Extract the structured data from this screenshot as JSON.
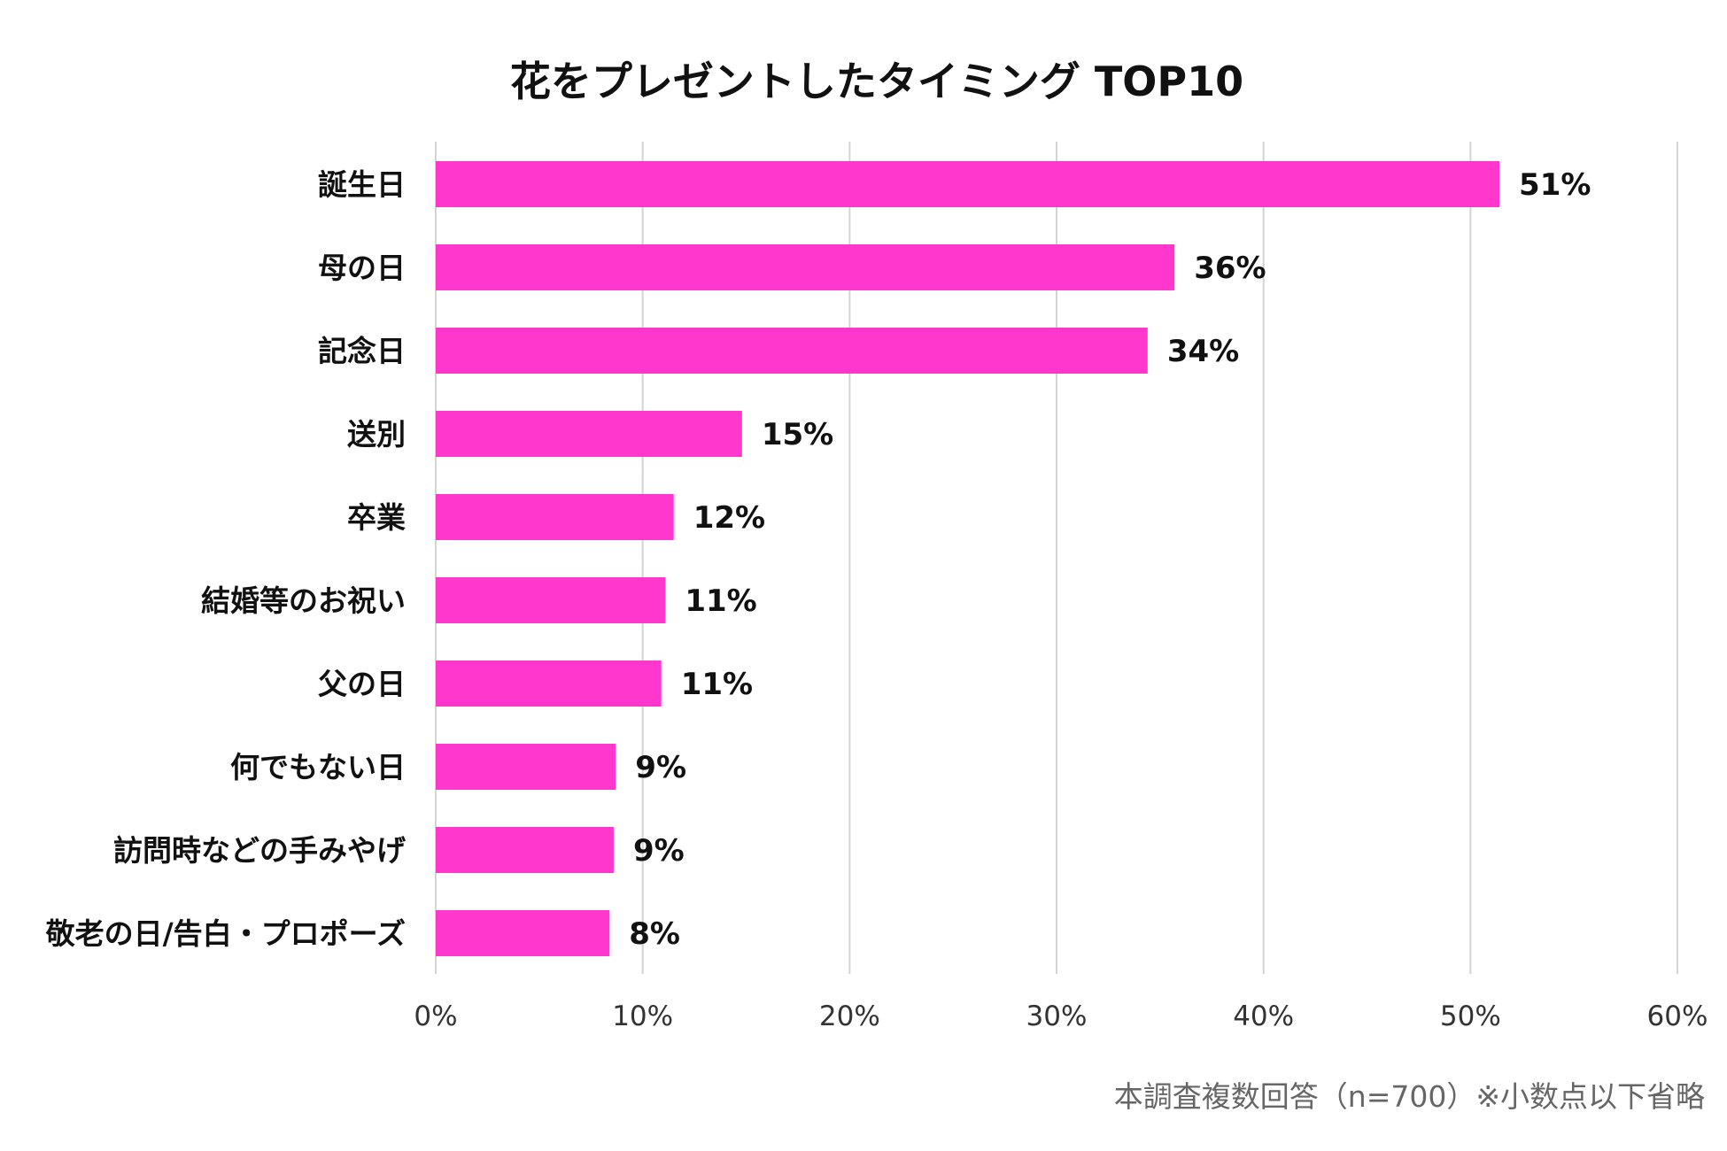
{
  "chart_data": {
    "type": "bar",
    "orientation": "horizontal",
    "title": "花をプレゼントしたタイミング TOP10",
    "categories": [
      "誕生日",
      "母の日",
      "記念日",
      "送別",
      "卒業",
      "結婚等のお祝い",
      "父の日",
      "何でもない日",
      "訪問時などの手みやげ",
      "敬老の日/告白・プロポーズ"
    ],
    "values": [
      51.4,
      35.7,
      34.4,
      14.8,
      11.5,
      11.1,
      10.9,
      8.7,
      8.6,
      8.4
    ],
    "value_labels": [
      "51%",
      "36%",
      "34%",
      "15%",
      "12%",
      "11%",
      "11%",
      "9%",
      "9%",
      "8%"
    ],
    "xlim": [
      0,
      60
    ],
    "x_ticks": [
      0,
      10,
      20,
      30,
      40,
      50,
      60
    ],
    "x_tick_labels": [
      "0%",
      "10%",
      "20%",
      "30%",
      "40%",
      "50%",
      "60%"
    ],
    "xlabel": "",
    "ylabel": "",
    "grid": "vertical",
    "legend": "none",
    "bar_color": "#ff37cc",
    "footnote": "本調査複数回答（n=700）※小数点以下省略"
  }
}
